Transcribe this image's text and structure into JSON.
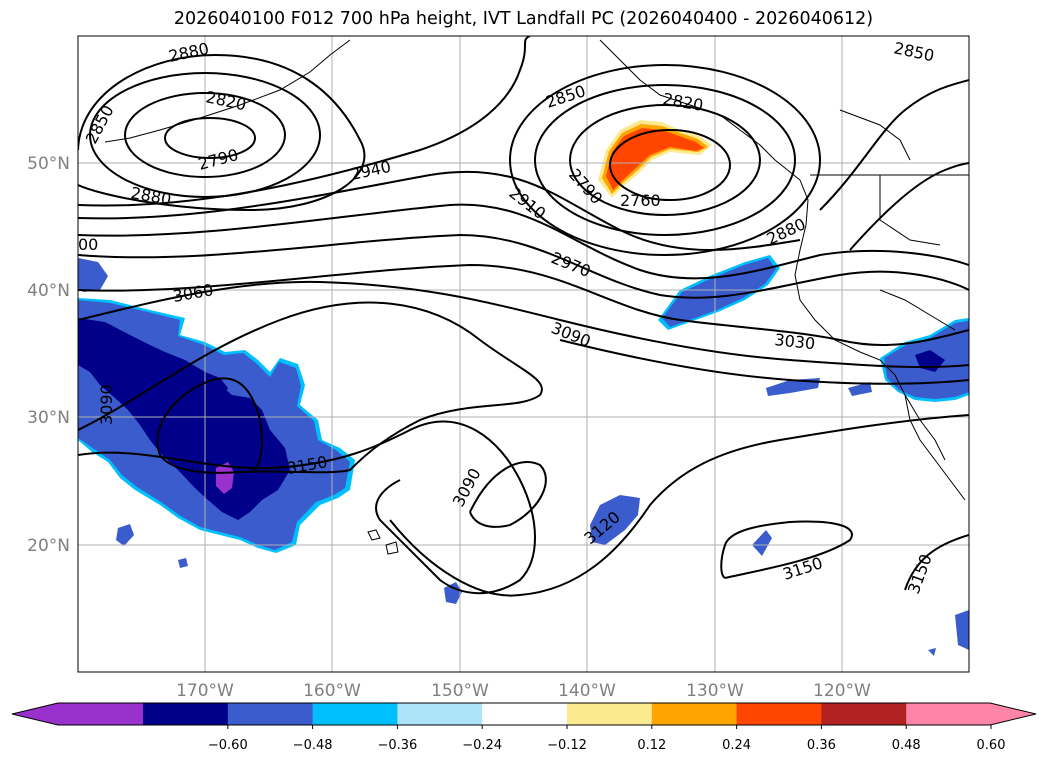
{
  "title": "2026040100 F012 700 hPa height, IVT Landfall PC (2026040400 - 2026040612)",
  "lat_labels": [
    "50°N",
    "40°N",
    "30°N",
    "20°N"
  ],
  "lon_labels": [
    "170°W",
    "160°W",
    "150°W",
    "140°W",
    "130°W",
    "120°W"
  ],
  "colorbar": {
    "colors": [
      "#9932cc",
      "#00008b",
      "#3a5ccc",
      "#00bfff",
      "#aee4fa",
      "#ffffff",
      "#fcea90",
      "#ffa500",
      "#ff4500",
      "#b22222",
      "#ff85a8"
    ],
    "ticks": [
      "−0.60",
      "−0.48",
      "−0.36",
      "−0.24",
      "−0.12",
      "0.12",
      "0.24",
      "0.36",
      "0.48",
      "0.60"
    ]
  },
  "contour_labels": [
    "2880",
    "2820",
    "2850",
    "2790",
    "2880",
    "2940",
    "2850",
    "2820",
    "2790",
    "2760",
    "2910",
    "2970",
    "2880",
    "2850",
    "3060",
    "3090",
    "3030",
    "3090",
    "3150",
    "3090",
    "3120",
    "3150",
    "3150",
    "00"
  ],
  "colors": {
    "contour": "#000000",
    "coast": "#000000",
    "grid": "#b0b0b0",
    "axis_label": "#808080"
  }
}
